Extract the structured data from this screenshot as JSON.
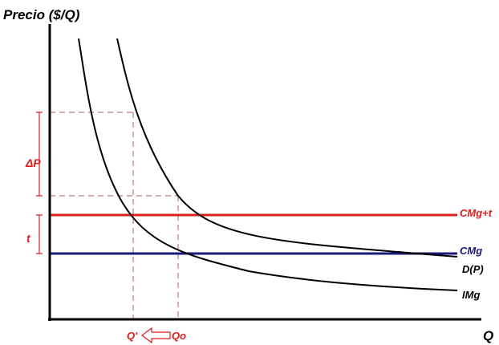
{
  "axes": {
    "y_label": "Precio ($/Q)",
    "x_label": "Q"
  },
  "curves": {
    "cmg_t": "CMg+t",
    "cmg": "CMg",
    "demand": "D(P)",
    "img": "IMg"
  },
  "brackets": {
    "delta_p": "ΔP",
    "t": "t"
  },
  "quantities": {
    "q_prime": "Q'",
    "q_o": "Qo"
  },
  "colors": {
    "axis": "#000000",
    "cost_line_with_tax": "#dd1c1c",
    "cost_line": "#1b1a7a",
    "curve": "#000000",
    "dashed": "#b35a5a",
    "annotation": "#dd1c1c"
  }
}
